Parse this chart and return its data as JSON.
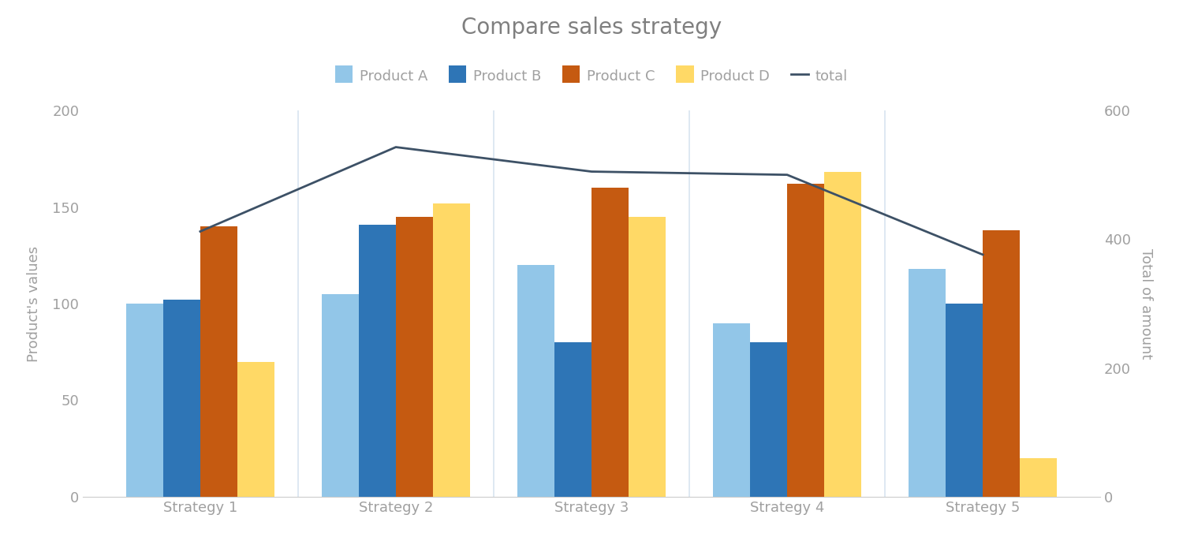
{
  "categories": [
    "Strategy 1",
    "Strategy 2",
    "Strategy 3",
    "Strategy 4",
    "Strategy 5"
  ],
  "product_a": [
    100,
    105,
    120,
    90,
    118
  ],
  "product_b": [
    102,
    141,
    80,
    80,
    100
  ],
  "product_c": [
    140,
    145,
    160,
    162,
    138
  ],
  "product_d": [
    70,
    152,
    145,
    168,
    20
  ],
  "total": [
    412,
    543,
    505,
    500,
    376
  ],
  "bar_colors": {
    "Product A": "#92C6E8",
    "Product B": "#2E75B6",
    "Product C": "#C55A11",
    "Product D": "#FFD966"
  },
  "line_color": "#3D5166",
  "title": "Compare sales strategy",
  "ylabel_left": "Product's values",
  "ylabel_right": "Total of amount",
  "ylim_left": [
    0,
    200
  ],
  "ylim_right": [
    0,
    600
  ],
  "yticks_left": [
    0,
    50,
    100,
    150,
    200
  ],
  "yticks_right": [
    0,
    200,
    400,
    600
  ],
  "background_color": "#FFFFFF",
  "grid_color": "#D8E4F0",
  "title_color": "#7F7F7F",
  "tick_color": "#A0A0A0",
  "label_color": "#A0A0A0",
  "title_fontsize": 20,
  "label_fontsize": 13,
  "tick_fontsize": 13,
  "legend_fontsize": 13
}
